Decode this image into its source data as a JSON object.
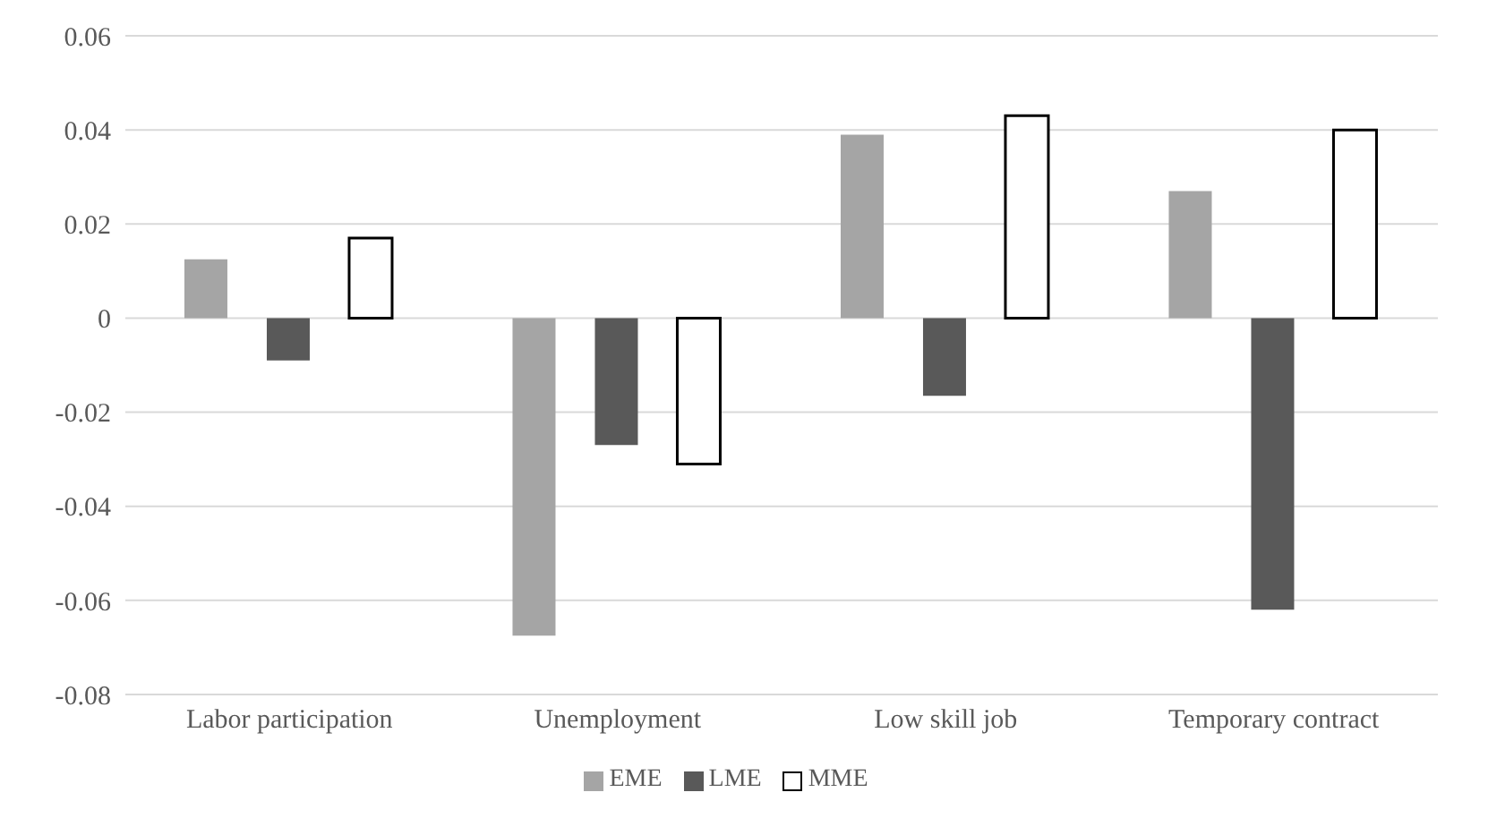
{
  "chart_data": {
    "type": "bar",
    "categories": [
      "Labor participation",
      "Unemployment",
      "Low skill job",
      "Temporary contract"
    ],
    "series": [
      {
        "name": "EME",
        "color": "#a5a5a5",
        "values": [
          0.0125,
          -0.0675,
          0.039,
          0.027
        ]
      },
      {
        "name": "LME",
        "color": "#595959",
        "values": [
          -0.009,
          -0.027,
          -0.0165,
          -0.062
        ]
      },
      {
        "name": "MME",
        "color": "#ffffff",
        "values": [
          0.017,
          -0.031,
          0.043,
          0.04
        ]
      }
    ],
    "ylim": [
      -0.08,
      0.06
    ],
    "yticks": [
      {
        "value": -0.08,
        "label": "-0.08"
      },
      {
        "value": -0.06,
        "label": "-0.06"
      },
      {
        "value": -0.04,
        "label": "-0.04"
      },
      {
        "value": -0.02,
        "label": "-0.02"
      },
      0,
      0.02,
      0.04,
      0.06
    ],
    "grid": "y",
    "legend": "bottom"
  }
}
